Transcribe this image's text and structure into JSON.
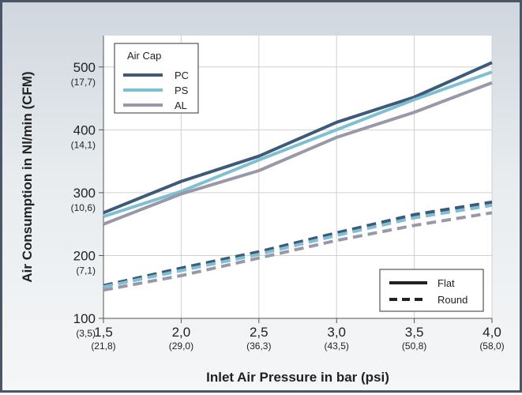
{
  "chart_data": {
    "type": "line",
    "xlabel": "Inlet Air Pressure in bar (psi)",
    "ylabel": "Air Consumption in Nl/min (CFM)",
    "xlim": [
      1.5,
      4.0
    ],
    "ylim": [
      100,
      550
    ],
    "x_ticks": [
      {
        "value": 1.5,
        "label": "1,5",
        "sublabel": "(21,8)"
      },
      {
        "value": 2.0,
        "label": "2,0",
        "sublabel": "(29,0)"
      },
      {
        "value": 2.5,
        "label": "2,5",
        "sublabel": "(36,3)"
      },
      {
        "value": 3.0,
        "label": "3,0",
        "sublabel": "(43,5)"
      },
      {
        "value": 3.5,
        "label": "3,5",
        "sublabel": "(50,8)"
      },
      {
        "value": 4.0,
        "label": "4,0",
        "sublabel": "(58,0)"
      }
    ],
    "y_ticks": [
      {
        "value": 100,
        "label": "100",
        "sublabel": "(3,5)"
      },
      {
        "value": 200,
        "label": "200",
        "sublabel": "(7,1)"
      },
      {
        "value": 300,
        "label": "300",
        "sublabel": "(10,6)"
      },
      {
        "value": 400,
        "label": "400",
        "sublabel": "(14,1)"
      },
      {
        "value": 500,
        "label": "500",
        "sublabel": "(17,7)"
      }
    ],
    "grid": true,
    "legend_cap": {
      "title": "Air Cap",
      "placement": "top-left"
    },
    "legend_style": {
      "placement": "bottom-right",
      "entries": [
        {
          "name": "Flat",
          "dash": "solid"
        },
        {
          "name": "Round",
          "dash": "dashed"
        }
      ]
    },
    "series": [
      {
        "name": "PC",
        "cap": "PC",
        "style": "Flat",
        "color": "#3d5a78",
        "x": [
          1.5,
          2.0,
          2.5,
          3.0,
          3.5,
          4.0
        ],
        "y": [
          268,
          318,
          358,
          412,
          452,
          507
        ]
      },
      {
        "name": "PS",
        "cap": "PS",
        "style": "Flat",
        "color": "#7fbfd3",
        "x": [
          1.5,
          2.0,
          2.5,
          3.0,
          3.5,
          4.0
        ],
        "y": [
          262,
          302,
          352,
          400,
          448,
          492
        ]
      },
      {
        "name": "AL",
        "cap": "AL",
        "style": "Flat",
        "color": "#9898a8",
        "x": [
          1.5,
          2.0,
          2.5,
          3.0,
          3.5,
          4.0
        ],
        "y": [
          250,
          298,
          335,
          388,
          428,
          475
        ]
      },
      {
        "name": "PC",
        "cap": "PC",
        "style": "Round",
        "color": "#3d5a78",
        "x": [
          1.5,
          2.0,
          2.5,
          3.0,
          3.5,
          4.0
        ],
        "y": [
          152,
          180,
          206,
          236,
          265,
          285
        ]
      },
      {
        "name": "PS",
        "cap": "PS",
        "style": "Round",
        "color": "#7fbfd3",
        "x": [
          1.5,
          2.0,
          2.5,
          3.0,
          3.5,
          4.0
        ],
        "y": [
          150,
          176,
          202,
          232,
          260,
          280
        ]
      },
      {
        "name": "AL",
        "cap": "AL",
        "style": "Round",
        "color": "#9898a8",
        "x": [
          1.5,
          2.0,
          2.5,
          3.0,
          3.5,
          4.0
        ],
        "y": [
          145,
          168,
          196,
          224,
          248,
          268
        ]
      }
    ]
  }
}
